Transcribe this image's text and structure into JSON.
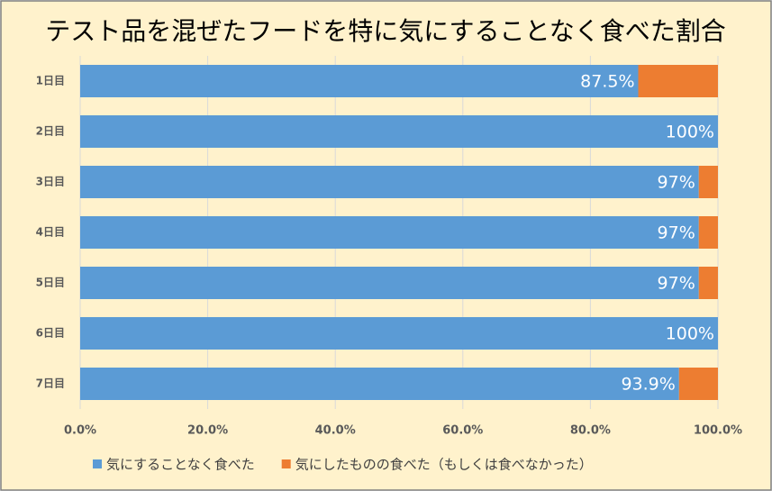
{
  "chart_data": {
    "type": "bar",
    "orientation": "horizontal",
    "stacked": true,
    "title": "テスト品を混ぜたフードを特に気にすることなく食べた割合",
    "categories": [
      "1日目",
      "2日目",
      "3日目",
      "4日目",
      "5日目",
      "6日目",
      "7日目"
    ],
    "series": [
      {
        "name": "気にすることなく食べた",
        "color": "#5b9bd5",
        "values": [
          87.5,
          100,
          97,
          97,
          97,
          100,
          93.9
        ],
        "value_labels": [
          "87.5%",
          "100%",
          "97%",
          "97%",
          "97%",
          "100%",
          "93.9%"
        ]
      },
      {
        "name": "気にしたものの食べた（もしくは食べなかった）",
        "color": "#ed7d31",
        "values": [
          12.5,
          0,
          3,
          3,
          3,
          0,
          6.1
        ]
      }
    ],
    "xlim": [
      0,
      100
    ],
    "xticks": [
      {
        "value": 0,
        "label": "0.0%"
      },
      {
        "value": 20,
        "label": "20.0%"
      },
      {
        "value": 40,
        "label": "40.0%"
      },
      {
        "value": 60,
        "label": "60.0%"
      },
      {
        "value": 80,
        "label": "80.0%"
      },
      {
        "value": 100,
        "label": "100.0%"
      }
    ],
    "grid": true,
    "legend": "bottom"
  }
}
